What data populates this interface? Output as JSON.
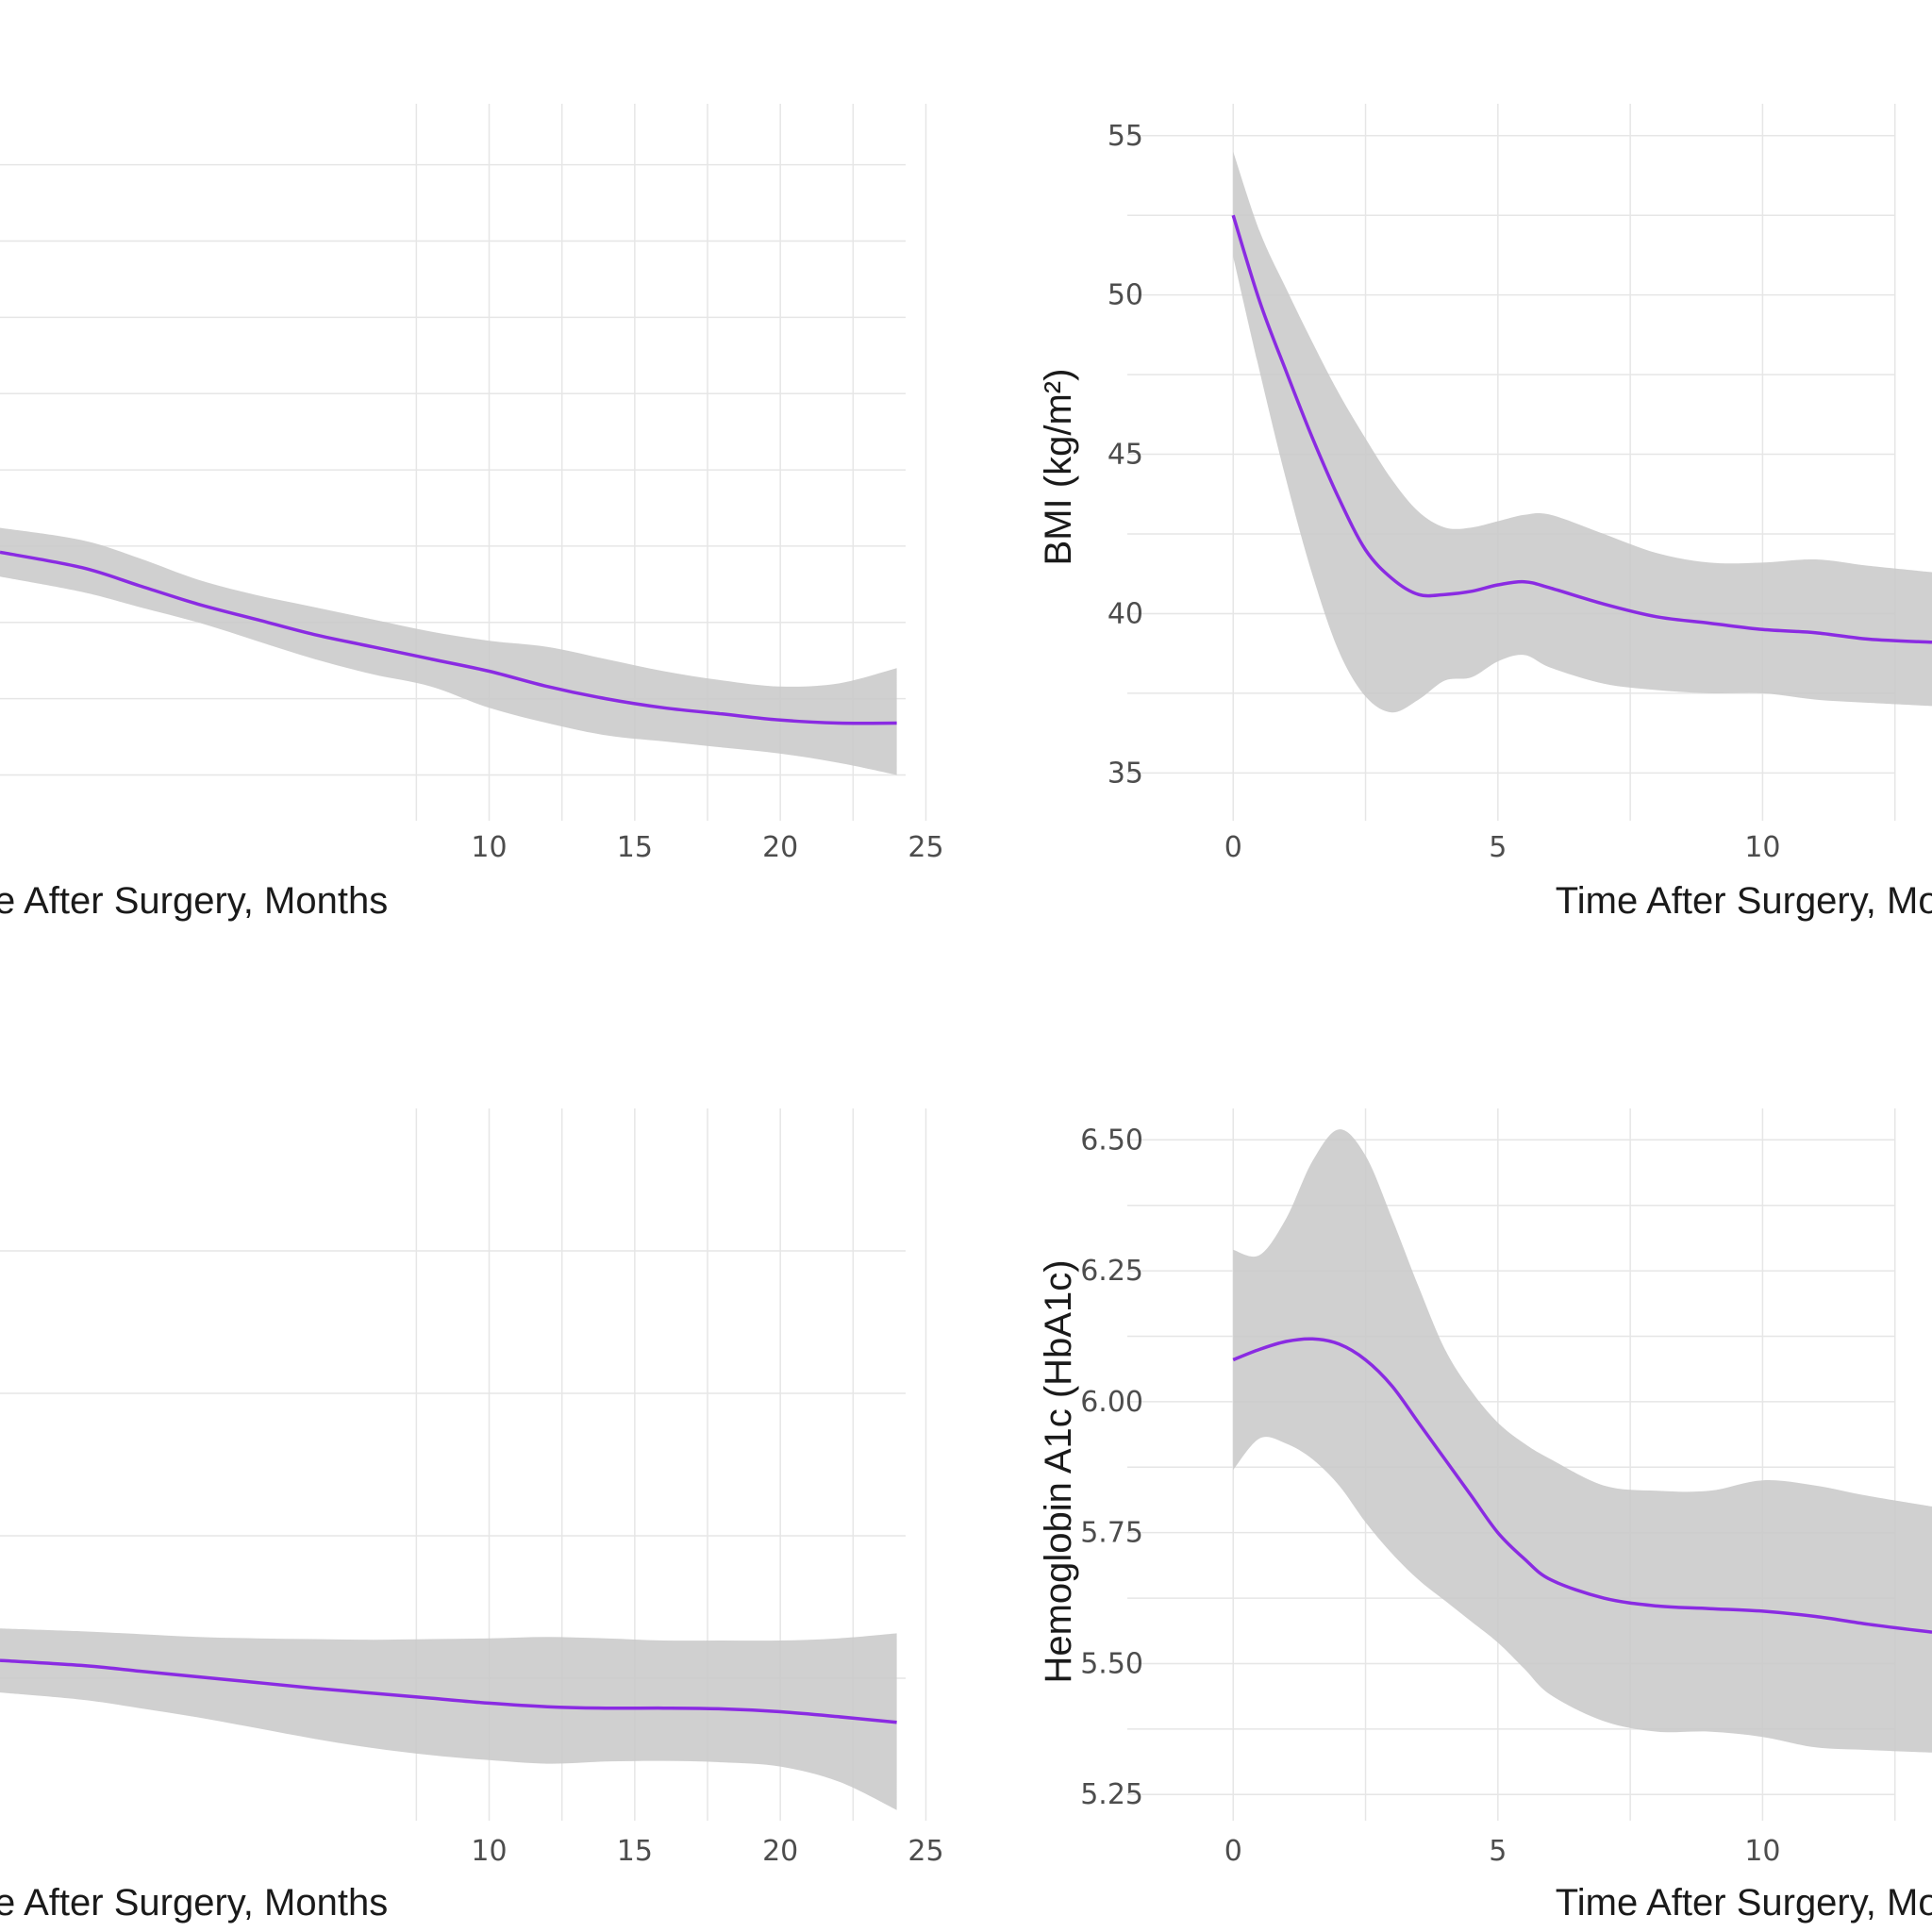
{
  "chart_data": [
    {
      "id": "tl",
      "type": "line",
      "xlabel": "Time After Surgery, Months",
      "ylabel": "",
      "xlim": [
        -6.8,
        25.6
      ],
      "ylim": [
        33.5,
        57
      ],
      "x_ticks": [
        10,
        15,
        20,
        25
      ],
      "x_tick_labels": [
        "10",
        "15",
        "20",
        "25"
      ],
      "y_ticks": [],
      "y_tick_labels": [],
      "grid_x": [
        7.5,
        10,
        12.5,
        15,
        17.5,
        20,
        22.5,
        25
      ],
      "grid_y": [
        35,
        37.5,
        40,
        42.5,
        45,
        47.5,
        50,
        52.5,
        55
      ],
      "x": [
        -6.8,
        -4,
        -2,
        0,
        2,
        4,
        6,
        8,
        10,
        12,
        14,
        16,
        18,
        20,
        22,
        24
      ],
      "y": [
        42.3,
        41.8,
        41.2,
        40.6,
        40.1,
        39.6,
        39.2,
        38.8,
        38.4,
        37.9,
        37.5,
        37.2,
        37.0,
        36.8,
        36.7,
        36.7
      ],
      "lower": [
        41.5,
        41.0,
        40.5,
        40.0,
        39.4,
        38.8,
        38.3,
        37.9,
        37.2,
        36.7,
        36.3,
        36.1,
        35.9,
        35.7,
        35.4,
        35.0
      ],
      "upper": [
        43.1,
        42.7,
        42.1,
        41.4,
        40.9,
        40.5,
        40.1,
        39.7,
        39.4,
        39.2,
        38.8,
        38.4,
        38.1,
        37.9,
        38.0,
        38.5
      ]
    },
    {
      "id": "tr",
      "type": "line",
      "xlabel": "Time After Surgery, Months",
      "ylabel": "BMI (kg/m²)",
      "xlim": [
        -2,
        13.2
      ],
      "ylim": [
        33.5,
        56
      ],
      "x_ticks": [
        0,
        5,
        10
      ],
      "x_tick_labels": [
        "0",
        "5",
        "10"
      ],
      "y_ticks": [
        35,
        40,
        45,
        50,
        55
      ],
      "y_tick_labels": [
        "35",
        "40",
        "45",
        "50",
        "55"
      ],
      "grid_x": [
        0,
        2.5,
        5,
        7.5,
        10,
        12.5
      ],
      "grid_y": [
        35,
        37.5,
        40,
        42.5,
        45,
        47.5,
        50,
        52.5,
        55
      ],
      "x": [
        0,
        0.5,
        1,
        1.5,
        2,
        2.5,
        3,
        3.5,
        4,
        4.5,
        5,
        5.5,
        6,
        7,
        8,
        9,
        10,
        11,
        12,
        13.2
      ],
      "y": [
        52.5,
        49.8,
        47.6,
        45.5,
        43.6,
        42.0,
        41.1,
        40.6,
        40.6,
        40.7,
        40.9,
        41.0,
        40.8,
        40.3,
        39.9,
        39.7,
        39.5,
        39.4,
        39.2,
        39.1
      ],
      "lower": [
        51.2,
        47.6,
        44.2,
        41.2,
        38.8,
        37.4,
        36.9,
        37.3,
        37.9,
        38.0,
        38.5,
        38.7,
        38.3,
        37.8,
        37.6,
        37.5,
        37.5,
        37.3,
        37.2,
        37.1
      ],
      "upper": [
        54.5,
        52.0,
        50.2,
        48.5,
        46.9,
        45.5,
        44.2,
        43.2,
        42.7,
        42.7,
        42.9,
        43.1,
        43.1,
        42.5,
        41.9,
        41.6,
        41.6,
        41.7,
        41.5,
        41.3
      ]
    },
    {
      "id": "bl",
      "type": "line",
      "xlabel": "Time After Surgery, Months",
      "ylabel": "",
      "xlim": [
        -6.8,
        25.6
      ],
      "ylim": [
        0,
        100
      ],
      "x_ticks": [
        10,
        15,
        20,
        25
      ],
      "x_tick_labels": [
        "10",
        "15",
        "20",
        "25"
      ],
      "y_ticks": [],
      "y_tick_labels": [],
      "grid_x": [
        7.5,
        10,
        12.5,
        15,
        17.5,
        20,
        22.5,
        25
      ],
      "grid_y": [
        20,
        40,
        60,
        80
      ],
      "x": [
        -6.8,
        -4,
        -2,
        0,
        2,
        4,
        6,
        8,
        10,
        12,
        14,
        16,
        18,
        20,
        22,
        24
      ],
      "y": [
        22.5,
        21.8,
        21.0,
        20.2,
        19.4,
        18.6,
        17.9,
        17.2,
        16.5,
        16.0,
        15.8,
        15.8,
        15.7,
        15.3,
        14.6,
        13.8
      ],
      "lower": [
        18.0,
        17.0,
        15.8,
        14.5,
        13.0,
        11.5,
        10.2,
        9.2,
        8.5,
        8.0,
        8.3,
        8.4,
        8.2,
        7.6,
        5.5,
        1.5
      ],
      "upper": [
        27.0,
        26.6,
        26.2,
        25.8,
        25.6,
        25.5,
        25.4,
        25.5,
        25.6,
        25.8,
        25.6,
        25.3,
        25.3,
        25.3,
        25.6,
        26.3
      ]
    },
    {
      "id": "br",
      "type": "line",
      "xlabel": "Time After Surgery, Months",
      "ylabel": "Hemoglobin A1c (HbA1c)",
      "xlim": [
        -2,
        13.2
      ],
      "ylim": [
        5.2,
        6.56
      ],
      "x_ticks": [
        0,
        5,
        10
      ],
      "x_tick_labels": [
        "0",
        "5",
        "10"
      ],
      "y_ticks": [
        5.25,
        5.5,
        5.75,
        6.0,
        6.25,
        6.5
      ],
      "y_tick_labels": [
        "5.25",
        "5.50",
        "5.75",
        "6.00",
        "6.25",
        "6.50"
      ],
      "grid_x": [
        0,
        2.5,
        5,
        7.5,
        10,
        12.5
      ],
      "grid_y": [
        5.25,
        5.375,
        5.5,
        5.625,
        5.75,
        5.875,
        6.0,
        6.125,
        6.25,
        6.375,
        6.5
      ],
      "x": [
        0,
        0.5,
        1,
        1.5,
        2,
        2.5,
        3,
        3.5,
        4,
        4.5,
        5,
        5.5,
        6,
        7,
        8,
        9,
        10,
        11,
        12,
        13.2
      ],
      "y": [
        6.08,
        6.1,
        6.115,
        6.12,
        6.11,
        6.08,
        6.03,
        5.96,
        5.89,
        5.82,
        5.75,
        5.7,
        5.66,
        5.625,
        5.61,
        5.605,
        5.6,
        5.59,
        5.575,
        5.56
      ],
      "lower": [
        5.87,
        5.93,
        5.92,
        5.89,
        5.84,
        5.77,
        5.71,
        5.66,
        5.62,
        5.58,
        5.54,
        5.49,
        5.44,
        5.39,
        5.37,
        5.37,
        5.36,
        5.34,
        5.335,
        5.33
      ],
      "upper": [
        6.29,
        6.28,
        6.35,
        6.46,
        6.52,
        6.47,
        6.35,
        6.22,
        6.1,
        6.02,
        5.96,
        5.92,
        5.89,
        5.84,
        5.83,
        5.83,
        5.85,
        5.84,
        5.82,
        5.8
      ]
    }
  ]
}
